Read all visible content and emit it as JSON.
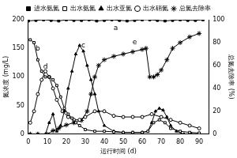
{
  "chart_data": {
    "type": "line",
    "x_label": "运行时间 (d)",
    "y_label": "氮浓度 (mg/L)",
    "y2_label": "总氮去除率 (%)",
    "xlim": [
      0,
      95
    ],
    "xticks": [
      0,
      10,
      20,
      30,
      40,
      50,
      60,
      70,
      80,
      90
    ],
    "ylim": [
      0,
      200
    ],
    "yticks": [
      0,
      50,
      100,
      150,
      200
    ],
    "y2lim": [
      0,
      100
    ],
    "y2ticks": [
      0,
      20,
      40,
      60,
      80,
      100
    ],
    "grid": false,
    "legend": "top",
    "series": [
      {
        "name": "进水氨氮",
        "color": "#000000",
        "marker": "square",
        "line_style": "solid",
        "x": [
          0,
          4,
          8,
          12,
          16,
          20,
          24,
          28,
          32,
          36,
          40,
          44,
          48,
          52,
          56,
          60,
          64,
          68,
          72,
          76,
          80,
          84,
          88,
          92
        ],
        "values": [
          198,
          199,
          200,
          199,
          198,
          200,
          199,
          199,
          200,
          198,
          199,
          200,
          199,
          198,
          199,
          200,
          200,
          199,
          198,
          199,
          200,
          199,
          199,
          200
        ]
      },
      {
        "name": "出水氨氮",
        "color": "#000000",
        "marker": "open_square",
        "line_style": "solid",
        "x": [
          1,
          3,
          5,
          7,
          9,
          11,
          13,
          15,
          17,
          19,
          21,
          23,
          25,
          27,
          30,
          35,
          40,
          45,
          50,
          55,
          60,
          63,
          66,
          69,
          72,
          75,
          80,
          85,
          90
        ],
        "values": [
          165,
          160,
          130,
          110,
          100,
          100,
          95,
          85,
          65,
          45,
          35,
          28,
          20,
          15,
          8,
          5,
          5,
          4,
          3,
          3,
          3,
          5,
          20,
          25,
          20,
          10,
          5,
          3,
          2
        ]
      },
      {
        "name": "出水亚氮",
        "color": "#000000",
        "marker": "triangle",
        "line_style": "solid",
        "x": [
          1,
          5,
          9,
          11,
          13,
          15,
          17,
          19,
          21,
          23,
          25,
          27,
          29,
          31,
          33,
          35,
          37,
          40,
          45,
          50,
          55,
          60,
          63,
          65,
          67,
          69,
          71,
          73,
          75,
          78,
          82,
          86,
          90
        ],
        "values": [
          0,
          0,
          0,
          20,
          35,
          5,
          15,
          40,
          80,
          110,
          140,
          155,
          145,
          120,
          95,
          70,
          40,
          15,
          5,
          3,
          3,
          3,
          5,
          20,
          40,
          45,
          42,
          30,
          15,
          5,
          0,
          0,
          0
        ]
      },
      {
        "name": "出水硝氮",
        "color": "#000000",
        "marker": "open_circle",
        "line_style": "solid",
        "x": [
          1,
          3,
          5,
          7,
          9,
          11,
          13,
          15,
          18,
          21,
          24,
          27,
          30,
          35,
          40,
          45,
          50,
          55,
          60,
          65,
          70,
          75,
          80,
          85,
          90
        ],
        "values": [
          20,
          40,
          70,
          95,
          110,
          100,
          80,
          60,
          40,
          30,
          25,
          25,
          30,
          40,
          40,
          32,
          30,
          30,
          30,
          35,
          30,
          25,
          20,
          15,
          10
        ]
      },
      {
        "name": "总氮去除率",
        "color": "#000000",
        "marker": "star",
        "line_style": "solid",
        "axis": "y2",
        "x": [
          1,
          5,
          10,
          13,
          16,
          20,
          24,
          28,
          31,
          33,
          35,
          37,
          40,
          45,
          50,
          55,
          60,
          62,
          64,
          66,
          68,
          70,
          73,
          76,
          80,
          85,
          90
        ],
        "values": [
          0,
          0,
          0,
          3,
          5,
          8,
          10,
          12,
          20,
          35,
          50,
          60,
          65,
          68,
          70,
          72,
          74,
          75,
          50,
          50,
          52,
          56,
          65,
          75,
          80,
          85,
          88
        ]
      }
    ],
    "annotations": [
      {
        "text": "a",
        "x": 46,
        "y": 185
      },
      {
        "text": "b",
        "x": 5,
        "y": 150
      },
      {
        "text": "c",
        "x": 29,
        "y": 155
      },
      {
        "text": "d",
        "x": 9,
        "y": 118
      },
      {
        "text": "e",
        "x": 56,
        "y": 160
      }
    ]
  }
}
